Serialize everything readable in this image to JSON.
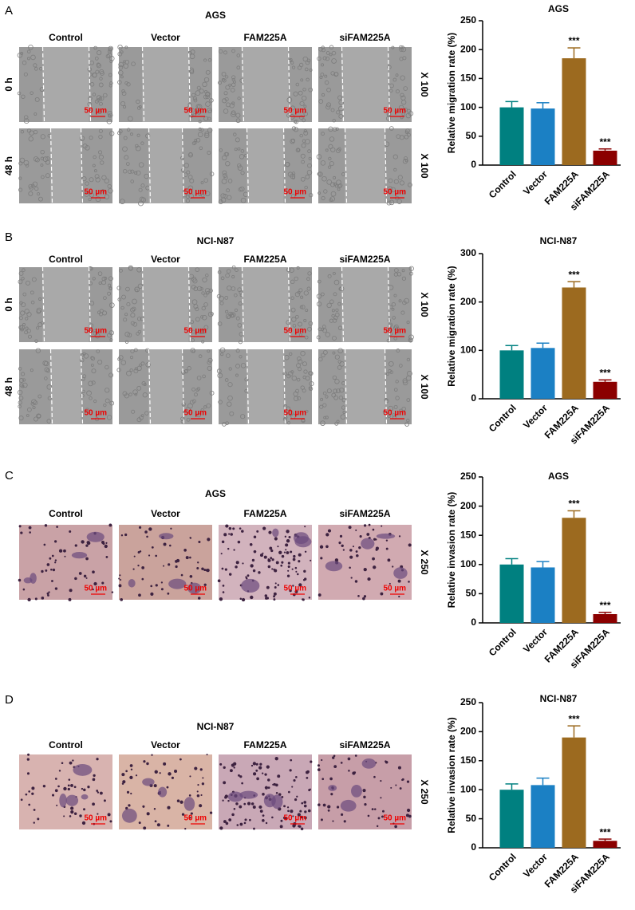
{
  "panels": [
    {
      "label": "A",
      "title": "AGS",
      "columns": [
        "Control",
        "Vector",
        "FAM225A",
        "siFAM225A"
      ],
      "rows": [
        "0 h",
        "48 h"
      ],
      "magnification": "X 100",
      "scale_bar": "50 µm"
    },
    {
      "label": "B",
      "title": "NCI-N87",
      "columns": [
        "Control",
        "Vector",
        "FAM225A",
        "siFAM225A"
      ],
      "rows": [
        "0 h",
        "48 h"
      ],
      "magnification": "X 100",
      "scale_bar": "50 µm"
    },
    {
      "label": "C",
      "title": "AGS",
      "columns": [
        "Control",
        "Vector",
        "FAM225A",
        "siFAM225A"
      ],
      "magnification": "X 250",
      "scale_bar": "50 µm"
    },
    {
      "label": "D",
      "title": "NCI-N87",
      "columns": [
        "Control",
        "Vector",
        "FAM225A",
        "siFAM225A"
      ],
      "magnification": "X 250",
      "scale_bar": "50 µm"
    }
  ],
  "chart_data": [
    {
      "type": "bar",
      "title": "AGS",
      "y_label": "Relative migration rate (%)",
      "categories": [
        "Control",
        "Vector",
        "FAM225A",
        "siFAM225A"
      ],
      "values": [
        100,
        98,
        185,
        25
      ],
      "errors": [
        10,
        10,
        18,
        3
      ],
      "significance": [
        null,
        null,
        "***",
        "***"
      ],
      "colors": [
        "#008080",
        "#1b80c4",
        "#9c6a1f",
        "#8b0000"
      ],
      "ylim": [
        0,
        250
      ],
      "yticks": [
        0,
        50,
        100,
        150,
        200,
        250
      ]
    },
    {
      "type": "bar",
      "title": "NCI-N87",
      "y_label": "Relative migration rate (%)",
      "categories": [
        "Control",
        "Vector",
        "FAM225A",
        "siFAM225A"
      ],
      "values": [
        100,
        105,
        230,
        35
      ],
      "errors": [
        10,
        10,
        12,
        4
      ],
      "significance": [
        null,
        null,
        "***",
        "***"
      ],
      "colors": [
        "#008080",
        "#1b80c4",
        "#9c6a1f",
        "#8b0000"
      ],
      "ylim": [
        0,
        300
      ],
      "yticks": [
        0,
        100,
        200,
        300
      ]
    },
    {
      "type": "bar",
      "title": "AGS",
      "y_label": "Relative invasion rate (%)",
      "categories": [
        "Control",
        "Vector",
        "FAM225A",
        "siFAM225A"
      ],
      "values": [
        100,
        95,
        180,
        15
      ],
      "errors": [
        10,
        10,
        12,
        3
      ],
      "significance": [
        null,
        null,
        "***",
        "***"
      ],
      "colors": [
        "#008080",
        "#1b80c4",
        "#9c6a1f",
        "#8b0000"
      ],
      "ylim": [
        0,
        250
      ],
      "yticks": [
        0,
        50,
        100,
        150,
        200,
        250
      ]
    },
    {
      "type": "bar",
      "title": "NCI-N87",
      "y_label": "Relative invasion rate (%)",
      "categories": [
        "Control",
        "Vector",
        "FAM225A",
        "siFAM225A"
      ],
      "values": [
        100,
        108,
        190,
        12
      ],
      "errors": [
        10,
        12,
        20,
        3
      ],
      "significance": [
        null,
        null,
        "***",
        "***"
      ],
      "colors": [
        "#008080",
        "#1b80c4",
        "#9c6a1f",
        "#8b0000"
      ],
      "ylim": [
        0,
        250
      ],
      "yticks": [
        0,
        50,
        100,
        150,
        200,
        250
      ]
    }
  ]
}
